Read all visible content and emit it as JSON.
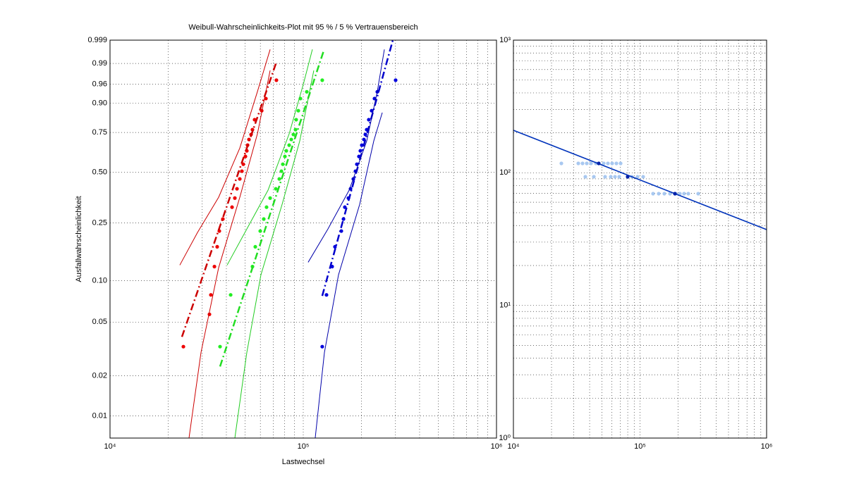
{
  "chart_data": [
    {
      "type": "weibull",
      "title": "Weibull-Wahrscheinlichkeits-Plot mit 95 % / 5 % Vertrauensbereich",
      "xlabel": "Lastwechsel",
      "ylabel": "Ausfallwahrscheinlichkeit",
      "xscale": "log",
      "xlim": [
        10000,
        1000000
      ],
      "xticks": [
        {
          "value": 10000,
          "label": "10⁴"
        },
        {
          "value": 100000,
          "label": "10⁵"
        },
        {
          "value": 1000000,
          "label": "10⁶"
        }
      ],
      "xminorticks": [
        20000,
        30000,
        40000,
        50000,
        60000,
        70000,
        80000,
        90000,
        200000,
        300000,
        400000,
        500000,
        600000,
        700000,
        800000,
        900000
      ],
      "yscale": "weibull",
      "ylim": [
        0.0068,
        0.999
      ],
      "yticks": [
        0.01,
        0.02,
        0.05,
        {
          "value": 0.1,
          "label": "0.10"
        },
        0.25,
        {
          "value": 0.5,
          "label": "0.50"
        },
        0.75,
        {
          "value": 0.9,
          "label": "0.90"
        },
        0.96,
        0.99,
        0.999
      ],
      "grid": true,
      "series": [
        {
          "style": "points",
          "color": "#ee0000",
          "x": [
            23970,
            32700,
            33260,
            34700,
            35860,
            36780,
            38370,
            42800,
            44260,
            45400,
            46950,
            48140,
            48950,
            50200,
            51050,
            51490,
            52360,
            53700,
            54580,
            56000,
            60950,
            64070,
            72620
          ],
          "values": [
            0.0329,
            0.057,
            0.079,
            0.126,
            0.173,
            0.221,
            0.265,
            0.315,
            0.358,
            0.406,
            0.461,
            0.507,
            0.55,
            0.599,
            0.635,
            0.671,
            0.707,
            0.738,
            0.767,
            0.823,
            0.868,
            0.918,
            0.968
          ]
        },
        {
          "style": "dashdot",
          "color": "#cc0000",
          "x": [
            23560,
            72620
          ],
          "values": [
            0.0389,
            0.9911
          ]
        },
        {
          "style": "solid",
          "color": "#cc0000",
          "x": [
            22970,
            28360,
            36480,
            46950,
            57920,
            67390
          ],
          "values": [
            0.129,
            0.216,
            0.362,
            0.653,
            0.9406,
            0.9972
          ]
        },
        {
          "style": "solid",
          "color": "#cc0000",
          "x": [
            25630,
            29570,
            36480,
            46950,
            57920,
            67390
          ],
          "values": [
            0.0068,
            0.0298,
            0.1236,
            0.362,
            0.742,
            0.9831
          ]
        },
        {
          "style": "points",
          "color": "#22ee22",
          "x": [
            37100,
            42100,
            54600,
            56470,
            59900,
            62460,
            64570,
            67390,
            72070,
            75170,
            77080,
            78390,
            80360,
            81740,
            84550,
            86700,
            88900,
            91200,
            91920,
            94300,
            96700,
            104300,
            125400
          ],
          "values": [
            0.0329,
            0.079,
            0.126,
            0.173,
            0.221,
            0.265,
            0.315,
            0.358,
            0.406,
            0.461,
            0.507,
            0.55,
            0.599,
            0.635,
            0.671,
            0.707,
            0.738,
            0.767,
            0.823,
            0.868,
            0.918,
            0.94,
            0.968
          ]
        },
        {
          "style": "dashdot",
          "color": "#22dd22",
          "x": [
            37100,
            127600
          ],
          "values": [
            0.0234,
            0.9968
          ]
        },
        {
          "style": "solid",
          "color": "#22cc22",
          "x": [
            40350,
            51050,
            65700,
            84550,
            100000,
            111500
          ],
          "values": [
            0.129,
            0.228,
            0.398,
            0.742,
            0.959,
            0.9972
          ]
        },
        {
          "style": "solid",
          "color": "#22cc22",
          "x": [
            44260,
            51050,
            60390,
            77730,
            95900,
            113400
          ],
          "values": [
            0.0068,
            0.0298,
            0.11,
            0.328,
            0.698,
            0.9831
          ]
        },
        {
          "style": "points",
          "color": "#0000dd",
          "x": [
            125400,
            131900,
            141100,
            145900,
            157400,
            161500,
            164100,
            171300,
            175700,
            181600,
            186300,
            189400,
            194200,
            197500,
            200900,
            206000,
            209600,
            213000,
            218300,
            225900,
            233700,
            241700,
            300600
          ],
          "values": [
            0.0329,
            0.079,
            0.126,
            0.173,
            0.221,
            0.265,
            0.315,
            0.358,
            0.406,
            0.461,
            0.507,
            0.55,
            0.599,
            0.635,
            0.671,
            0.707,
            0.738,
            0.767,
            0.823,
            0.868,
            0.918,
            0.94,
            0.968
          ]
        },
        {
          "style": "dashdot",
          "color": "#0000cc",
          "x": [
            125400,
            290800
          ],
          "values": [
            0.0777,
            0.999
          ]
        },
        {
          "style": "solid",
          "color": "#0000aa",
          "x": [
            106000,
            134200,
            172700,
            213100,
            241600,
            262900
          ],
          "values": [
            0.135,
            0.228,
            0.398,
            0.698,
            0.9406,
            0.9972
          ]
        },
        {
          "style": "solid",
          "color": "#0000aa",
          "x": [
            115300,
            128700,
            152200,
            195900,
            231700,
            256400
          ],
          "values": [
            0.0068,
            0.0298,
            0.11,
            0.328,
            0.698,
            0.859
          ]
        }
      ]
    },
    {
      "type": "scatter",
      "xscale": "log",
      "xlim": [
        10000,
        1000000
      ],
      "xticks": [
        {
          "value": 10000,
          "label": "10⁴"
        },
        {
          "value": 100000,
          "label": "10⁵"
        },
        {
          "value": 1000000,
          "label": "10⁶"
        }
      ],
      "xminorticks": [
        20000,
        30000,
        40000,
        50000,
        60000,
        70000,
        80000,
        90000,
        200000,
        300000,
        400000,
        500000,
        600000,
        700000,
        800000,
        900000
      ],
      "yscale": "log",
      "ylim": [
        1,
        1000
      ],
      "yticks": [
        {
          "value": 1,
          "label": "10⁰"
        },
        {
          "value": 10,
          "label": "10¹"
        },
        {
          "value": 100,
          "label": "10²"
        },
        {
          "value": 1000,
          "label": "10³"
        }
      ],
      "yminorticks": [
        2,
        3,
        4,
        5,
        6,
        7,
        8,
        9,
        20,
        30,
        40,
        50,
        60,
        70,
        80,
        90,
        200,
        300,
        400,
        500,
        600,
        700,
        800,
        900
      ],
      "grid": true,
      "series": [
        {
          "style": "points",
          "color": "#a8c8f0",
          "x": [
            23920,
            32550,
            35150,
            37970,
            41010,
            44860,
            51660,
            55790,
            60260,
            65090,
            70290,
            37000,
            43170,
            52990,
            58730,
            63420,
            68500,
            86290,
            95610,
            105900,
            126800,
            140500,
            155700,
            172500,
            191100,
            206400,
            222900,
            240800,
            288200
          ],
          "values": [
            117.7,
            117.7,
            117.7,
            117.7,
            117.7,
            117.7,
            117.7,
            117.7,
            117.7,
            117.7,
            117.7,
            93.3,
            93.3,
            93.3,
            93.3,
            93.3,
            93.3,
            93.3,
            93.3,
            93.3,
            69.6,
            69.6,
            69.6,
            69.6,
            69.6,
            69.6,
            69.6,
            69.6,
            69.6
          ]
        },
        {
          "style": "solid",
          "color": "#0033bb",
          "x": [
            10000,
            1000000
          ],
          "values": [
            209,
            37.3
          ]
        },
        {
          "style": "points",
          "color": "#0022aa",
          "x": [
            47210,
            79900,
            188700
          ],
          "values": [
            117.7,
            93.3,
            69.6
          ]
        }
      ]
    }
  ]
}
